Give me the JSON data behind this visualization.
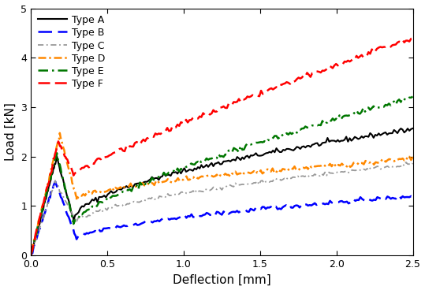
{
  "xlabel": "Deflection [mm]",
  "ylabel": "Load [kN]",
  "xlim": [
    0,
    2.5
  ],
  "ylim": [
    0,
    5
  ],
  "xticks": [
    0.0,
    0.5,
    1.0,
    1.5,
    2.0,
    2.5
  ],
  "yticks": [
    0,
    1,
    2,
    3,
    4,
    5
  ],
  "series": [
    {
      "label": "Type A",
      "color": "#000000",
      "ls": "-",
      "lw": 1.5
    },
    {
      "label": "Type B",
      "color": "#0000ff",
      "ls": "--",
      "lw": 1.8
    },
    {
      "label": "Type C",
      "color": "#999999",
      "ls": "-.",
      "lw": 1.3
    },
    {
      "label": "Type D",
      "color": "#ff8800",
      "ls": "-.",
      "lw": 1.8
    },
    {
      "label": "Type E",
      "color": "#007700",
      "ls": "-.",
      "lw": 1.8
    },
    {
      "label": "Type F",
      "color": "#ff0000",
      "ls": "--",
      "lw": 1.8
    }
  ],
  "background_color": "#ffffff",
  "legend_fontsize": 9,
  "axis_fontsize": 11,
  "tick_fontsize": 9
}
